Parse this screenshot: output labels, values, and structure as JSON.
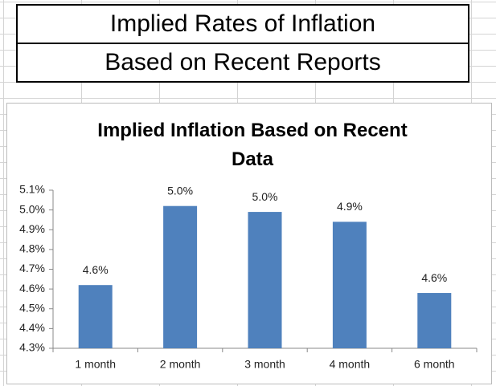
{
  "header": {
    "title": "Implied Rates of Inflation",
    "subtitle": "Based on Recent Reports"
  },
  "chart_data": {
    "type": "bar",
    "title": "Implied Inflation Based on Recent Data",
    "categories": [
      "1 month",
      "2 month",
      "3 month",
      "4 month",
      "6 month"
    ],
    "values": [
      4.62,
      5.02,
      4.99,
      4.94,
      4.58
    ],
    "value_labels": [
      "4.6%",
      "5.0%",
      "5.0%",
      "4.9%",
      "4.6%"
    ],
    "color": "#4f81bd",
    "ylim": [
      4.3,
      5.1
    ],
    "yticks": [
      {
        "value": 4.3,
        "label": "4.3%"
      },
      {
        "value": 4.4,
        "label": "4.4%"
      },
      {
        "value": 4.5,
        "label": "4.5%"
      },
      {
        "value": 4.6,
        "label": "4.6%"
      },
      {
        "value": 4.7,
        "label": "4.7%"
      },
      {
        "value": 4.8,
        "label": "4.8%"
      },
      {
        "value": 4.9,
        "label": "4.9%"
      },
      {
        "value": 5.0,
        "label": "5.0%"
      },
      {
        "value": 5.1,
        "label": "5.1%"
      }
    ],
    "grid": false
  }
}
